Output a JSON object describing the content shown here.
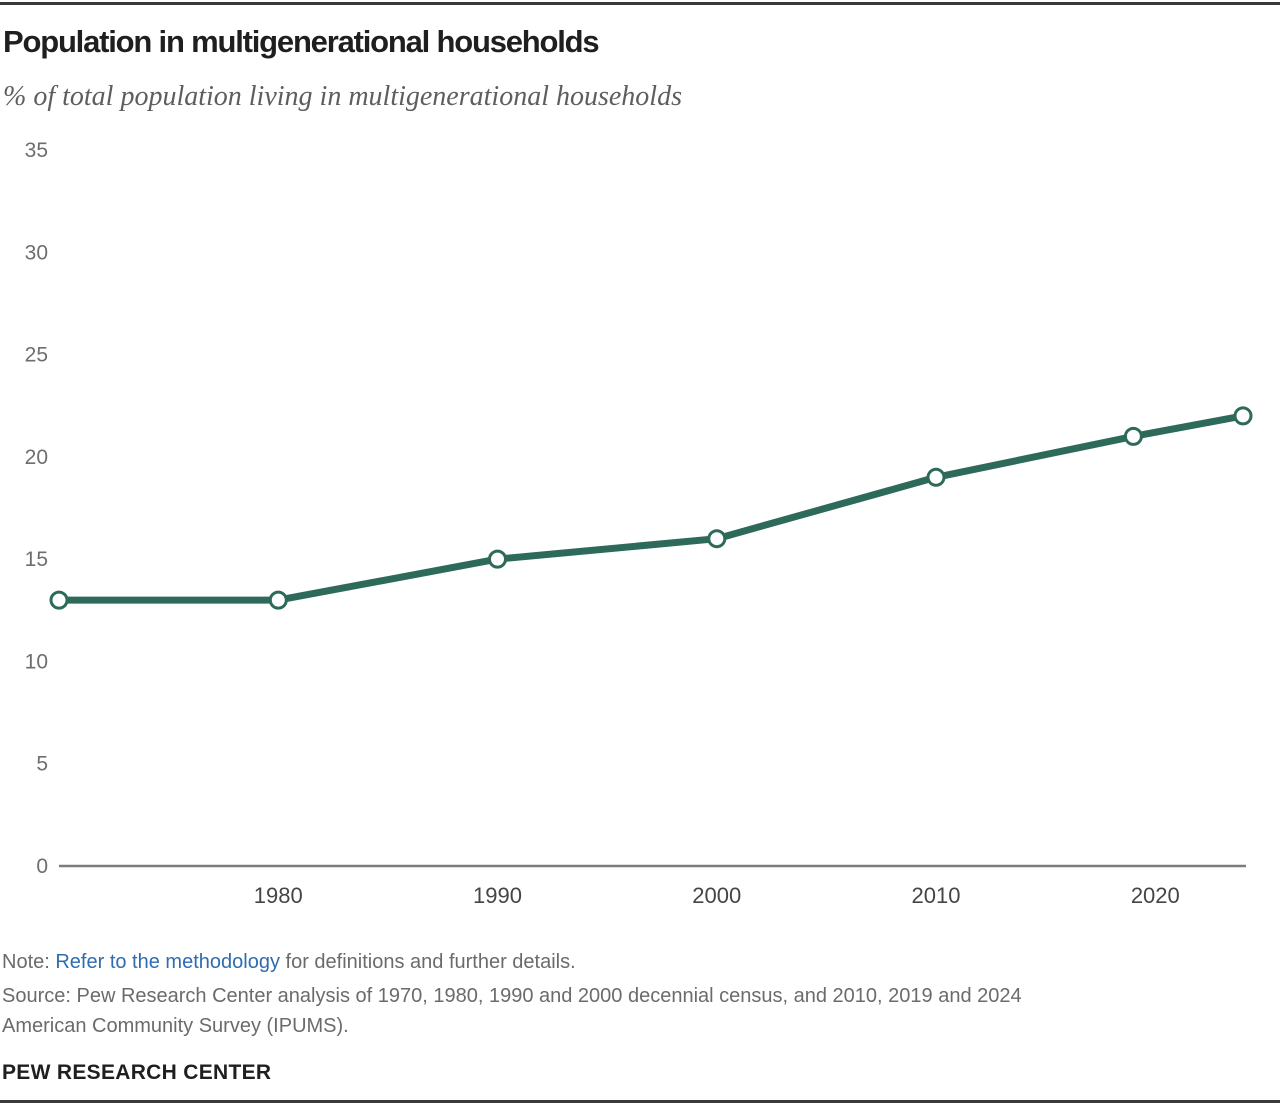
{
  "page": {
    "title": "Population in multigenerational households",
    "subtitle": "% of total population living in multigenerational households",
    "note": {
      "prefix": "Note: ",
      "link_text": "Refer to the methodology",
      "suffix": " for definitions and further details."
    },
    "source_lines": [
      "Source: Pew Research Center analysis of 1970, 1980, 1990 and 2000 decennial census, and 2010, 2019 and 2024",
      "American Community Survey (IPUMS)."
    ],
    "footer": "PEW RESEARCH CENTER"
  },
  "chart_data": {
    "type": "line",
    "title": "Population in multigenerational households",
    "subtitle": "% of total population living in multigenerational households",
    "x": [
      1970,
      1980,
      1990,
      2000,
      2010,
      2019,
      2024
    ],
    "series": [
      {
        "name": "% of total population living in multigenerational households",
        "values": [
          13,
          13,
          15,
          16,
          19,
          21,
          22
        ]
      }
    ],
    "xlabel": "",
    "ylabel": "",
    "xlim": [
      1970,
      2024
    ],
    "ylim": [
      0,
      35
    ],
    "yticks": [
      0,
      5,
      10,
      15,
      20,
      25,
      30,
      35
    ],
    "xticks": [
      1980,
      1990,
      2000,
      2010,
      2020
    ],
    "grid": false,
    "legend": false,
    "marker": "open-circle",
    "line_color": "#2e6a5a",
    "marker_fill": "#ffffff",
    "axis_color": "#7c7c7c",
    "ytick_label_color": "#6e6e6e",
    "xtick_label_color": "#454545"
  },
  "colors": {
    "accent_green": "#2e6a5a",
    "link_blue": "#2f6cb0",
    "text_dark": "#1f1f1f",
    "text_gray": "#6b6b6b",
    "subtitle_gray": "#5e5e5e",
    "rule_color": "#3a3a3a"
  }
}
